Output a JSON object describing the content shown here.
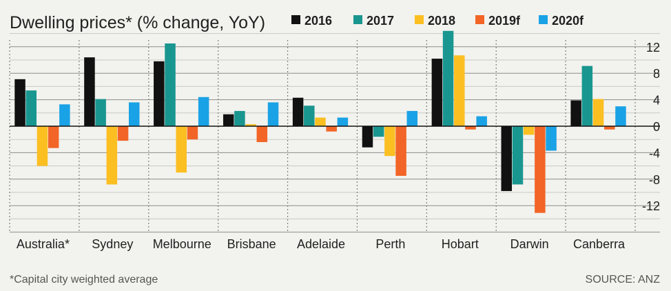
{
  "chart_data": {
    "type": "bar",
    "title": "Dwelling prices* (% change, YoY)",
    "categories": [
      "Australia*",
      "Sydney",
      "Melbourne",
      "Brisbane",
      "Adelaide",
      "Perth",
      "Hobart",
      "Darwin",
      "Canberra"
    ],
    "series": [
      {
        "name": "2016",
        "color": "#111111",
        "values": [
          7.1,
          10.4,
          9.8,
          1.8,
          4.3,
          -3.2,
          10.2,
          -9.8,
          3.9
        ]
      },
      {
        "name": "2017",
        "color": "#1a9690",
        "values": [
          5.4,
          4.1,
          12.5,
          2.3,
          3.1,
          -1.6,
          14.4,
          -8.8,
          9.1
        ]
      },
      {
        "name": "2018",
        "color": "#fbbf22",
        "values": [
          -6.0,
          -8.8,
          -7.0,
          0.3,
          1.3,
          -4.5,
          10.7,
          -1.3,
          4.1
        ]
      },
      {
        "name": "2019f",
        "color": "#f26527",
        "values": [
          -3.3,
          -2.2,
          -2.0,
          -2.4,
          -0.8,
          -7.5,
          -0.5,
          -13.1,
          -0.5
        ]
      },
      {
        "name": "2020f",
        "color": "#1aa2e6",
        "values": [
          3.3,
          3.6,
          4.4,
          3.6,
          1.3,
          2.3,
          1.5,
          -3.7,
          3.0
        ]
      }
    ],
    "yticks": [
      12,
      8,
      4,
      0,
      -4,
      -8,
      -12
    ],
    "ytick_labels": [
      "12",
      "8",
      "4",
      "0",
      "-4",
      "-8",
      "-12"
    ],
    "ylim": [
      -16,
      14
    ],
    "grid": true,
    "legend_position": "top",
    "footnote": "*Capital city weighted average",
    "source": "SOURCE: ANZ"
  }
}
